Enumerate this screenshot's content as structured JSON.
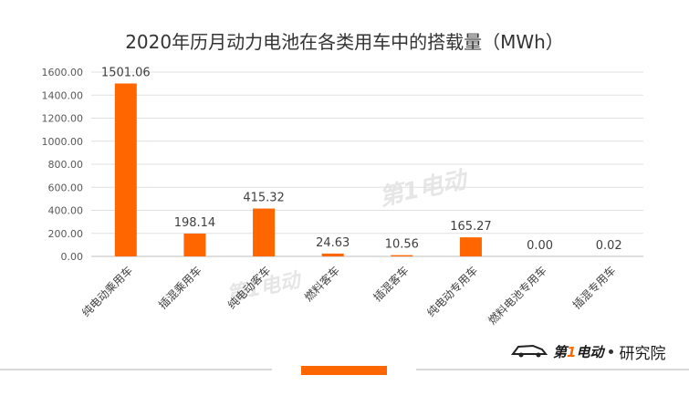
{
  "chart_data": {
    "type": "bar",
    "title": "2020年历月动力电池在各类用车中的搭载量（MWh）",
    "categories": [
      "纯电动乘用车",
      "插混乘用车",
      "纯电动客车",
      "燃料客车",
      "插混客车",
      "纯电动专用车",
      "燃料电池专用车",
      "插混专用车"
    ],
    "values": [
      1501.06,
      198.14,
      415.32,
      24.63,
      10.56,
      165.27,
      0.0,
      0.02
    ],
    "data_labels": [
      "1501.06",
      "198.14",
      "415.32",
      "24.63",
      "10.56",
      "165.27",
      "0.00",
      "0.02"
    ],
    "y_ticks": [
      "0.00",
      "200.00",
      "400.00",
      "600.00",
      "800.00",
      "1000.00",
      "1200.00",
      "1400.00",
      "1600.00"
    ],
    "ylim": [
      0,
      1600
    ],
    "xlabel": "",
    "ylabel": "",
    "grid": true,
    "bar_color": "#ff6600"
  },
  "watermark": "第1电动",
  "logo": {
    "brand_prefix": "第",
    "brand_one": "1",
    "brand_suffix": "电动",
    "suffix": "研究院"
  }
}
